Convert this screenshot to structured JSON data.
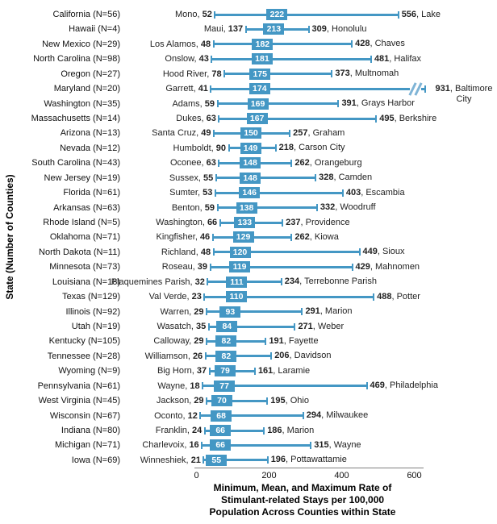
{
  "chart_data": {
    "type": "range-min-mean-max",
    "ylabel": "State (Number of Counties)",
    "xlabel_lines": [
      "Minimum, Mean, and Maximum Rate of",
      "Stimulant-related Stays per 100,000",
      "Population Across  Counties within State"
    ],
    "x_ticks": [
      0,
      200,
      400,
      600
    ],
    "xlim": [
      0,
      625
    ],
    "grid": false,
    "legend": "none",
    "accent_color": "#4497C4",
    "break_color": "#7FB4D6",
    "axis_color": "#7f7f7f",
    "rows": [
      {
        "state_label": "California (N=56)",
        "min_county": "Mono",
        "min": 52,
        "mean": 222,
        "max": 556,
        "max_county": "Lake"
      },
      {
        "state_label": "Hawaii (N=4)",
        "min_county": "Maui",
        "min": 137,
        "mean": 213,
        "max": 309,
        "max_county": "Honolulu"
      },
      {
        "state_label": "New Mexico (N=29)",
        "min_county": "Los Alamos",
        "min": 48,
        "mean": 182,
        "max": 428,
        "max_county": "Chaves"
      },
      {
        "state_label": "North Carolina (N=98)",
        "min_county": "Onslow",
        "min": 43,
        "mean": 181,
        "max": 481,
        "max_county": "Halifax"
      },
      {
        "state_label": "Oregon (N=27)",
        "min_county": "Hood River",
        "min": 78,
        "mean": 175,
        "max": 373,
        "max_county": "Multnomah"
      },
      {
        "state_label": "Maryland (N=20)",
        "min_county": "Garrett",
        "min": 41,
        "mean": 174,
        "max": 931,
        "max_county": "Baltimore City",
        "axis_break": true
      },
      {
        "state_label": "Washington (N=35)",
        "min_county": "Adams",
        "min": 59,
        "mean": 169,
        "max": 391,
        "max_county": "Grays Harbor"
      },
      {
        "state_label": "Massachusetts (N=14)",
        "min_county": "Dukes",
        "min": 63,
        "mean": 167,
        "max": 495,
        "max_county": "Berkshire"
      },
      {
        "state_label": "Arizona (N=13)",
        "min_county": "Santa Cruz",
        "min": 49,
        "mean": 150,
        "max": 257,
        "max_county": "Graham"
      },
      {
        "state_label": "Nevada (N=12)",
        "min_county": "Humboldt",
        "min": 90,
        "mean": 149,
        "max": 218,
        "max_county": "Carson City"
      },
      {
        "state_label": "South Carolina (N=43)",
        "min_county": "Oconee",
        "min": 63,
        "mean": 148,
        "max": 262,
        "max_county": "Orangeburg"
      },
      {
        "state_label": "New Jersey (N=19)",
        "min_county": "Sussex",
        "min": 55,
        "mean": 148,
        "max": 328,
        "max_county": "Camden"
      },
      {
        "state_label": "Florida (N=61)",
        "min_county": "Sumter",
        "min": 53,
        "mean": 146,
        "max": 403,
        "max_county": "Escambia"
      },
      {
        "state_label": "Arkansas (N=63)",
        "min_county": "Benton",
        "min": 59,
        "mean": 138,
        "max": 332,
        "max_county": "Woodruff"
      },
      {
        "state_label": "Rhode Island (N=5)",
        "min_county": "Washington",
        "min": 66,
        "mean": 133,
        "max": 237,
        "max_county": "Providence"
      },
      {
        "state_label": "Oklahoma (N=71)",
        "min_county": "Kingfisher",
        "min": 46,
        "mean": 129,
        "max": 262,
        "max_county": "Kiowa"
      },
      {
        "state_label": "North Dakota (N=11)",
        "min_county": "Richland",
        "min": 48,
        "mean": 120,
        "max": 449,
        "max_county": "Sioux"
      },
      {
        "state_label": "Minnesota (N=73)",
        "min_county": "Roseau",
        "min": 39,
        "mean": 119,
        "max": 429,
        "max_county": "Mahnomen"
      },
      {
        "state_label": "Louisiana (N=18)",
        "min_county": "Plaquemines Parish",
        "min": 32,
        "mean": 111,
        "max": 234,
        "max_county": "Terrebonne Parish"
      },
      {
        "state_label": "Texas (N=129)",
        "min_county": "Val Verde",
        "min": 23,
        "mean": 110,
        "max": 488,
        "max_county": "Potter"
      },
      {
        "state_label": "Illinois (N=92)",
        "min_county": "Warren",
        "min": 29,
        "mean": 93,
        "max": 291,
        "max_county": "Marion"
      },
      {
        "state_label": "Utah (N=19)",
        "min_county": "Wasatch",
        "min": 35,
        "mean": 84,
        "max": 271,
        "max_county": "Weber"
      },
      {
        "state_label": "Kentucky (N=105)",
        "min_county": "Calloway",
        "min": 29,
        "mean": 82,
        "max": 191,
        "max_county": "Fayette"
      },
      {
        "state_label": "Tennessee (N=28)",
        "min_county": "Williamson",
        "min": 26,
        "mean": 82,
        "max": 206,
        "max_county": "Davidson"
      },
      {
        "state_label": "Wyoming (N=9)",
        "min_county": "Big Horn",
        "min": 37,
        "mean": 79,
        "max": 161,
        "max_county": "Laramie"
      },
      {
        "state_label": "Pennsylvania (N=61)",
        "min_county": "Wayne",
        "min": 18,
        "mean": 77,
        "max": 469,
        "max_county": "Philadelphia"
      },
      {
        "state_label": "West Virginia (N=45)",
        "min_county": "Jackson",
        "min": 29,
        "mean": 70,
        "max": 195,
        "max_county": "Ohio"
      },
      {
        "state_label": "Wisconsin (N=67)",
        "min_county": "Oconto",
        "min": 12,
        "mean": 68,
        "max": 294,
        "max_county": "Milwaukee"
      },
      {
        "state_label": "Indiana (N=80)",
        "min_county": "Franklin",
        "min": 24,
        "mean": 66,
        "max": 186,
        "max_county": "Marion"
      },
      {
        "state_label": "Michigan (N=71)",
        "min_county": "Charlevoix",
        "min": 16,
        "mean": 66,
        "max": 315,
        "max_county": "Wayne"
      },
      {
        "state_label": "Iowa (N=69)",
        "min_county": "Winneshiek",
        "min": 21,
        "mean": 55,
        "max": 196,
        "max_county": "Pottawattamie"
      }
    ]
  }
}
